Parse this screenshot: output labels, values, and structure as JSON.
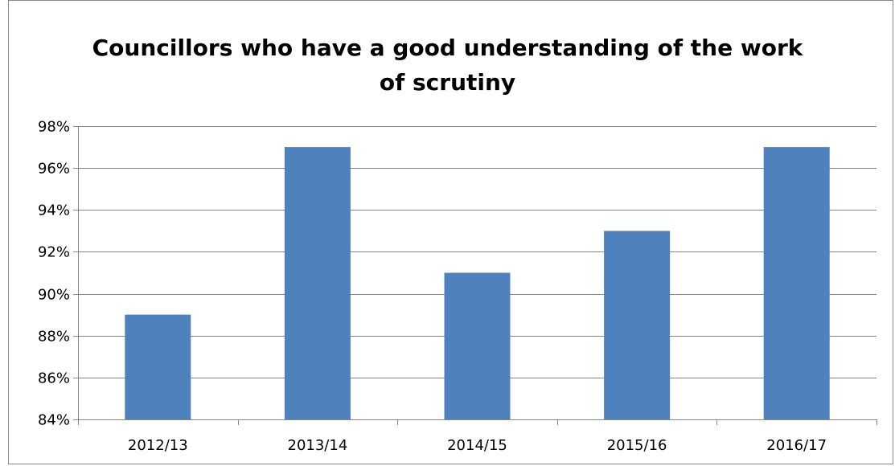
{
  "chart_data": {
    "type": "bar",
    "title_lines": [
      "Councillors who have a good understanding of the work",
      "of scrutiny"
    ],
    "categories": [
      "2012/13",
      "2013/14",
      "2014/15",
      "2015/16",
      "2016/17"
    ],
    "values": [
      89,
      97,
      91,
      93,
      97
    ],
    "value_unit": "%",
    "ylim": [
      84,
      98
    ],
    "y_ticks": [
      84,
      86,
      88,
      90,
      92,
      94,
      96,
      98
    ],
    "y_tick_labels": [
      "84%",
      "86%",
      "88%",
      "90%",
      "92%",
      "94%",
      "96%",
      "98%"
    ],
    "grid": true,
    "legend": "none",
    "bar_color": "#4f81bd",
    "grid_color": "#868686"
  }
}
